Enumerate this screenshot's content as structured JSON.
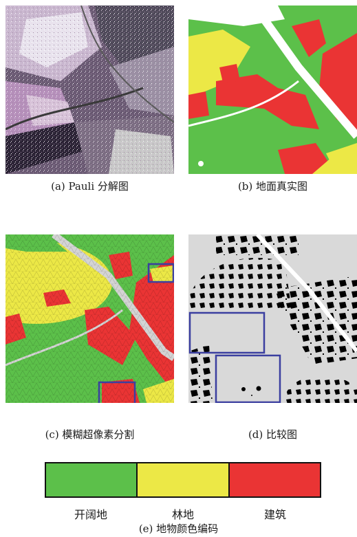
{
  "captions": {
    "a": "(a) Pauli 分解图",
    "b": "(b) 地面真实图",
    "c": "(c) 模糊超像素分割",
    "d": "(d) 比较图",
    "e": "(e) 地物颜色编码"
  },
  "legend": {
    "items": [
      {
        "label": "开阔地",
        "color": "#5cc04a"
      },
      {
        "label": "林地",
        "color": "#ece846"
      },
      {
        "label": "建筑",
        "color": "#ea3434"
      }
    ]
  },
  "colors": {
    "open_land": "#5cc04a",
    "forest": "#ece846",
    "building": "#ea3434",
    "road": "#ffffff",
    "highlight_box": "#3b3fa0"
  }
}
